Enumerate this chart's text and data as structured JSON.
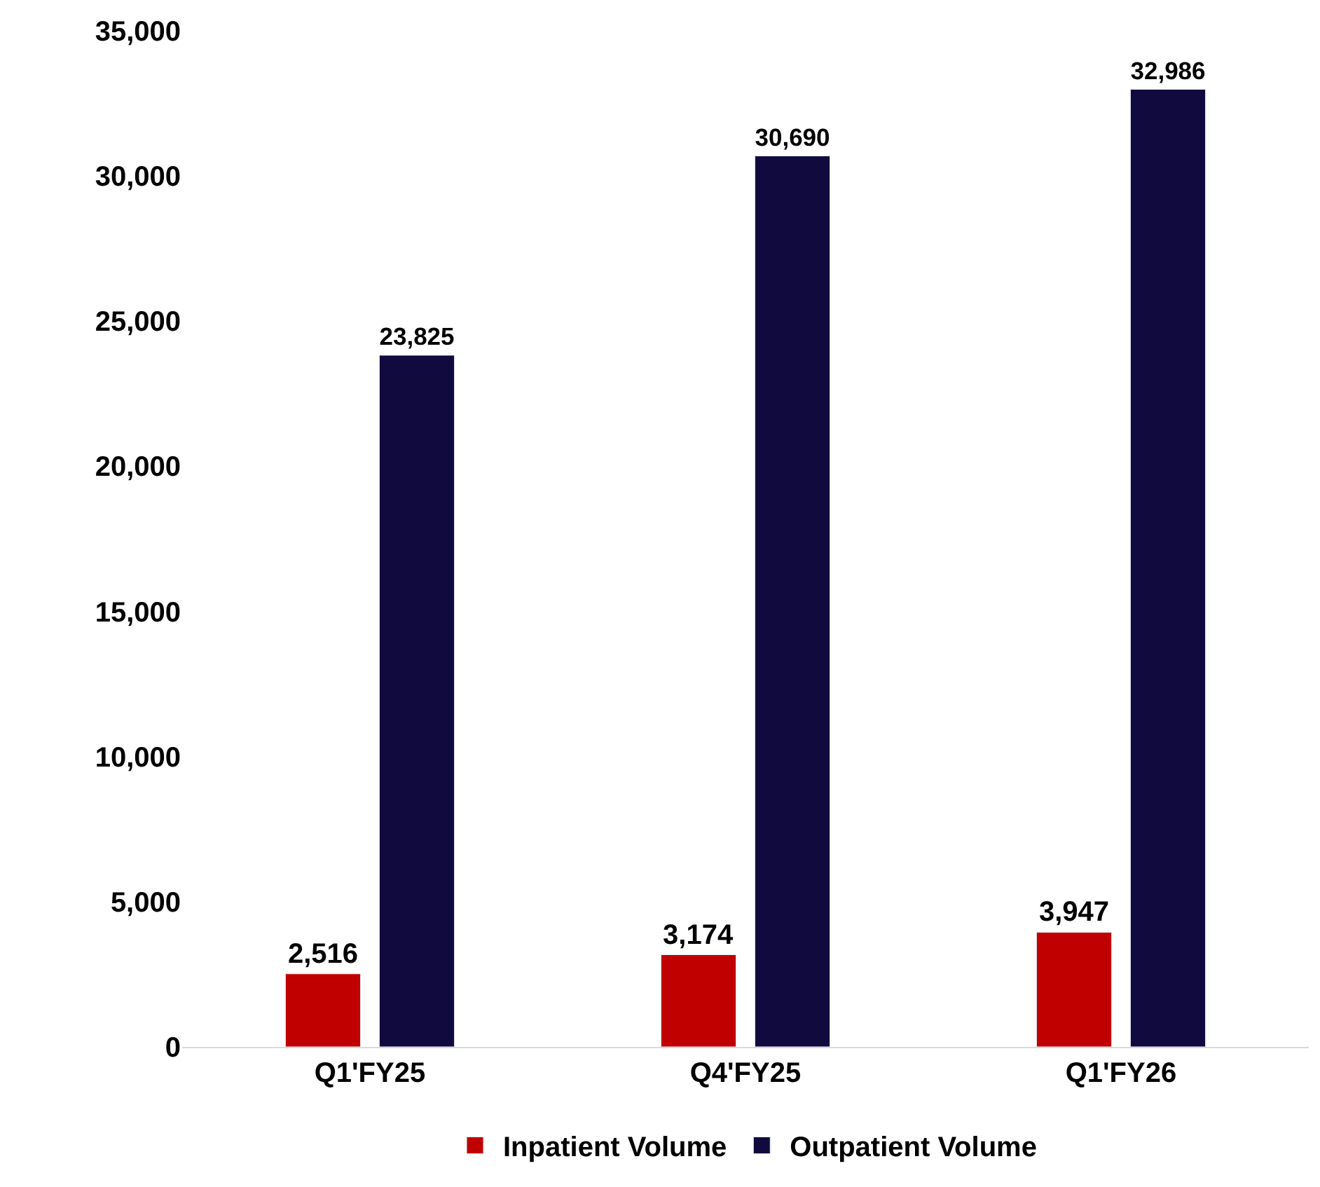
{
  "chart_data": {
    "type": "bar",
    "categories": [
      "Q1'FY25",
      "Q4'FY25",
      "Q1'FY26"
    ],
    "series": [
      {
        "name": "Inpatient Volume",
        "color": "#c00000",
        "values": [
          2516,
          3174,
          3947
        ],
        "value_labels": [
          "2,516",
          "3,174",
          "3,947"
        ]
      },
      {
        "name": "Outpatient Volume",
        "color": "#110a3f",
        "values": [
          23825,
          30690,
          32986
        ],
        "value_labels": [
          "23,825",
          "30,690",
          "32,986"
        ]
      }
    ],
    "ylim": [
      0,
      35000
    ],
    "yticks": [
      0,
      {
        "value": 5000,
        "label": "5,000"
      },
      {
        "value": 10000,
        "label": "10,000"
      },
      {
        "value": 15000,
        "label": "15,000"
      },
      {
        "value": 20000,
        "label": "20,000"
      },
      {
        "value": 25000,
        "label": "25,000"
      },
      {
        "value": 30000,
        "label": "30,000"
      },
      {
        "value": 35000,
        "label": "35,000"
      }
    ],
    "legend": "bottom"
  }
}
